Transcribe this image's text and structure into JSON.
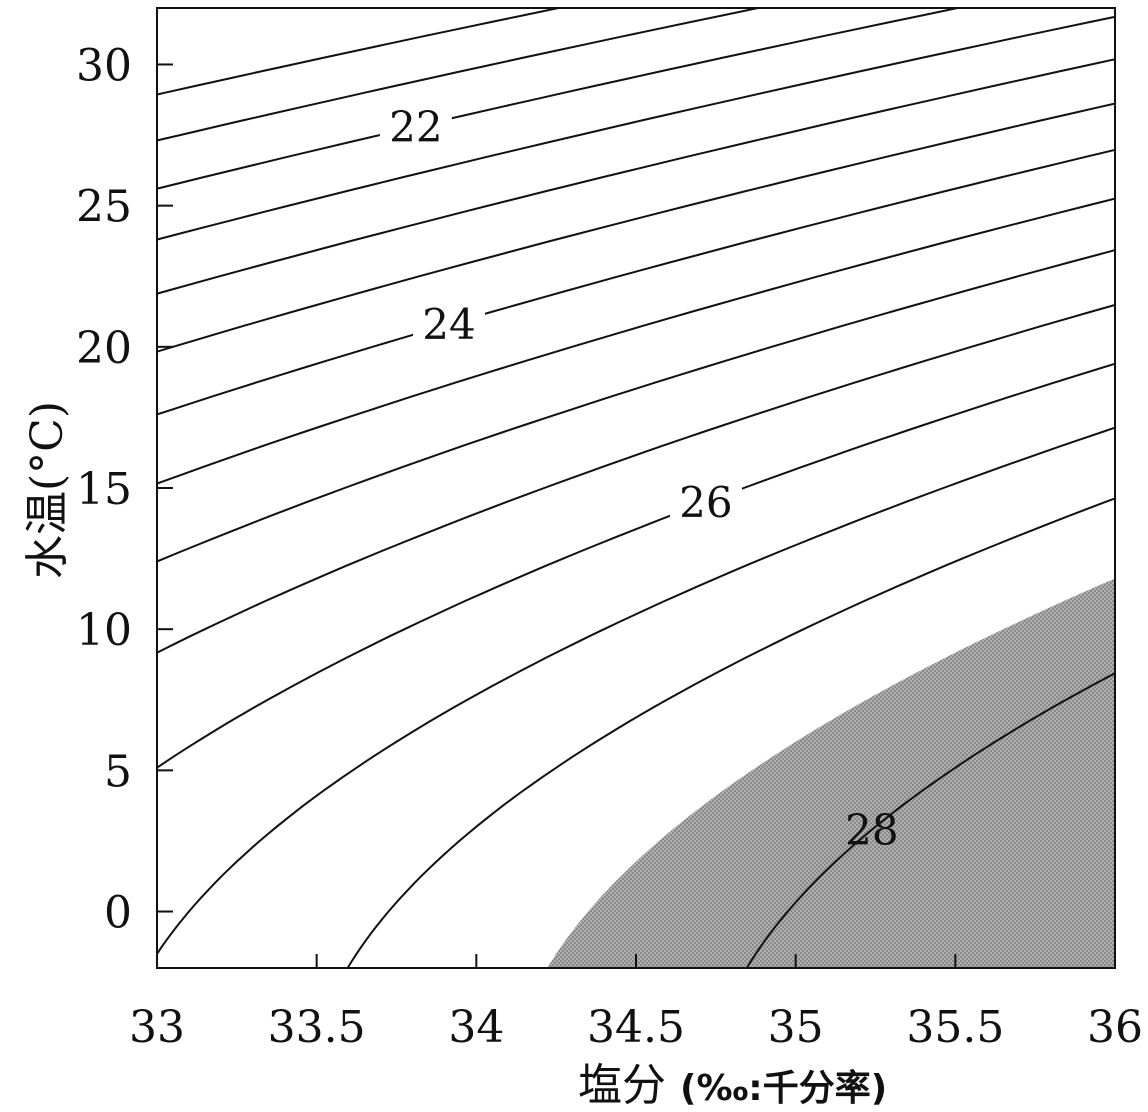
{
  "chart_data": {
    "type": "contour",
    "xlabel": "塩分",
    "xlabel_unit": "(‰:千分率)",
    "ylabel": "水温(°C)",
    "xlim": [
      33,
      36
    ],
    "ylim": [
      -2,
      32
    ],
    "x_ticks": [
      "33",
      "33.5",
      "34",
      "34.5",
      "35",
      "35.5",
      "36"
    ],
    "y_ticks": [
      "0",
      "5",
      "10",
      "15",
      "20",
      "25",
      "30"
    ],
    "contour_levels": [
      21,
      21.5,
      22,
      22.5,
      23,
      23.5,
      24,
      24.5,
      25,
      25.5,
      26,
      26.5,
      27,
      28
    ],
    "contour_labels": [
      "22",
      "24",
      "26",
      "28"
    ],
    "shaded_region": {
      "condition": "density >= 27.5",
      "color": "#9a9a9a"
    },
    "colors": {
      "line": "#111111",
      "shade": "#9c9c9c",
      "background": "#ffffff"
    }
  }
}
